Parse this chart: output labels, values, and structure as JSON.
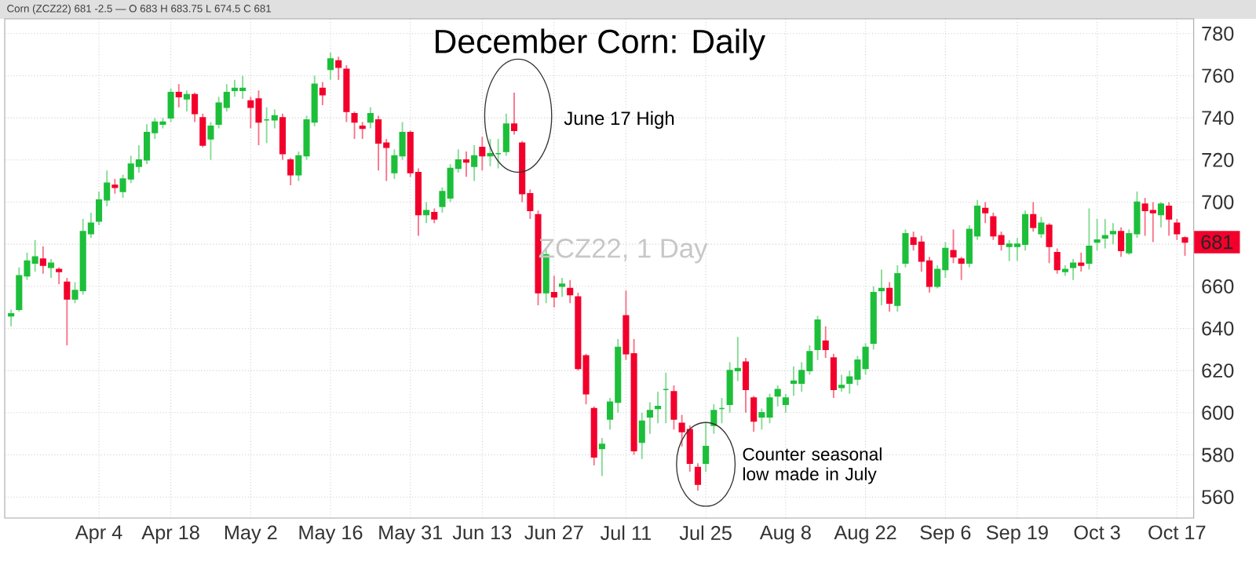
{
  "chart_data": {
    "type": "candlestick",
    "title": "December Corn: Daily",
    "categories": [
      null,
      null,
      null,
      null,
      null,
      null,
      null,
      null,
      null,
      null,
      null,
      "Apr 4",
      null,
      null,
      null,
      null,
      null,
      null,
      null,
      null,
      "Apr 18",
      null,
      null,
      null,
      null,
      null,
      null,
      null,
      null,
      null,
      "May 2",
      null,
      null,
      null,
      null,
      null,
      null,
      null,
      null,
      null,
      "May 16",
      null,
      null,
      null,
      null,
      null,
      null,
      null,
      null,
      null,
      "May 31",
      null,
      null,
      null,
      null,
      null,
      null,
      null,
      null,
      "Jun 13",
      null,
      null,
      null,
      null,
      null,
      null,
      null,
      null,
      "Jun 27",
      null,
      null,
      null,
      null,
      null,
      null,
      null,
      null,
      "Jul 11",
      null,
      null,
      null,
      null,
      null,
      null,
      null,
      null,
      null,
      "Jul 25",
      null,
      null,
      null,
      null,
      null,
      null,
      null,
      null,
      null,
      "Aug 8",
      null,
      null,
      null,
      null,
      null,
      null,
      null,
      null,
      null,
      "Aug 22",
      null,
      null,
      null,
      null,
      null,
      null,
      null,
      null,
      null,
      "Sep 6",
      null,
      null,
      null,
      null,
      null,
      null,
      null,
      null,
      "Sep 19",
      null,
      null,
      null,
      null,
      null,
      null,
      null,
      null,
      null,
      "Oct 3",
      null,
      null,
      null,
      null,
      null,
      null,
      null,
      null,
      null,
      "Oct 17",
      null
    ],
    "ohlc": [
      [
        646,
        649,
        641,
        647
      ],
      [
        649,
        669,
        648,
        665
      ],
      [
        665,
        676,
        663,
        672
      ],
      [
        671,
        682,
        667,
        674
      ],
      [
        673,
        679,
        666,
        670
      ],
      [
        669,
        673,
        664,
        671
      ],
      [
        668,
        669,
        661,
        667
      ],
      [
        662,
        664,
        632,
        654
      ],
      [
        654,
        662,
        652,
        658
      ],
      [
        658,
        692,
        656,
        686
      ],
      [
        685,
        695,
        683,
        690
      ],
      [
        691,
        705,
        689,
        701
      ],
      [
        701,
        715,
        698,
        709
      ],
      [
        708,
        711,
        704,
        707
      ],
      [
        705,
        713,
        702,
        711
      ],
      [
        711,
        722,
        709,
        718
      ],
      [
        717,
        727,
        714,
        720
      ],
      [
        720,
        737,
        718,
        733
      ],
      [
        733,
        740,
        730,
        738
      ],
      [
        737,
        740,
        735,
        738
      ],
      [
        740,
        754,
        738,
        752
      ],
      [
        752,
        756,
        745,
        750
      ],
      [
        749,
        753,
        743,
        751
      ],
      [
        751,
        752,
        738,
        742
      ],
      [
        740,
        742,
        726,
        727
      ],
      [
        730,
        738,
        720,
        736
      ],
      [
        737,
        750,
        735,
        747
      ],
      [
        745,
        756,
        743,
        752
      ],
      [
        753,
        758,
        750,
        754
      ],
      [
        753,
        760,
        749,
        754
      ],
      [
        748,
        750,
        735,
        745
      ],
      [
        749,
        753,
        727,
        738
      ],
      [
        739,
        745,
        728,
        739
      ],
      [
        739,
        744,
        735,
        741
      ],
      [
        740,
        742,
        720,
        723
      ],
      [
        720,
        721,
        708,
        713
      ],
      [
        713,
        724,
        710,
        722
      ],
      [
        722,
        741,
        720,
        739
      ],
      [
        738,
        760,
        736,
        756
      ],
      [
        754,
        757,
        746,
        751
      ],
      [
        763,
        771,
        758,
        768
      ],
      [
        767,
        769,
        758,
        764
      ],
      [
        763,
        765,
        738,
        743
      ],
      [
        742,
        743,
        730,
        738
      ],
      [
        736,
        738,
        730,
        735
      ],
      [
        738,
        745,
        735,
        742
      ],
      [
        739,
        741,
        715,
        728
      ],
      [
        728,
        730,
        710,
        726
      ],
      [
        714,
        725,
        711,
        722
      ],
      [
        722,
        738,
        720,
        733
      ],
      [
        733,
        734,
        712,
        714
      ],
      [
        714,
        716,
        684,
        694
      ],
      [
        694,
        700,
        690,
        696
      ],
      [
        695,
        697,
        690,
        692
      ],
      [
        698,
        707,
        695,
        705
      ],
      [
        702,
        718,
        700,
        716
      ],
      [
        716,
        725,
        714,
        720
      ],
      [
        720,
        724,
        712,
        719
      ],
      [
        717,
        727,
        710,
        722
      ],
      [
        726,
        731,
        715,
        722
      ],
      [
        722,
        730,
        717,
        723
      ],
      [
        723,
        730,
        716,
        723
      ],
      [
        724,
        742,
        722,
        737
      ],
      [
        737,
        752,
        732,
        734
      ],
      [
        728,
        729,
        700,
        704
      ],
      [
        704,
        706,
        692,
        696
      ],
      [
        694,
        696,
        651,
        657
      ],
      [
        657,
        678,
        652,
        675
      ],
      [
        657,
        665,
        650,
        655
      ],
      [
        660,
        664,
        655,
        661
      ],
      [
        659,
        663,
        652,
        656
      ],
      [
        655,
        657,
        620,
        621
      ],
      [
        627,
        628,
        604,
        609
      ],
      [
        602,
        603,
        575,
        579
      ],
      [
        583,
        588,
        570,
        585
      ],
      [
        597,
        607,
        592,
        605
      ],
      [
        605,
        635,
        600,
        631
      ],
      [
        646,
        658,
        625,
        628
      ],
      [
        628,
        635,
        580,
        582
      ],
      [
        586,
        600,
        578,
        596
      ],
      [
        598,
        605,
        590,
        601
      ],
      [
        602,
        610,
        595,
        603
      ],
      [
        611,
        619,
        595,
        611
      ],
      [
        610,
        613,
        592,
        597
      ],
      [
        595,
        599,
        584,
        591
      ],
      [
        592,
        594,
        572,
        576
      ],
      [
        574,
        576,
        563,
        566
      ],
      [
        576,
        595,
        572,
        584
      ],
      [
        594,
        604,
        590,
        601
      ],
      [
        602,
        607,
        595,
        602
      ],
      [
        604,
        624,
        600,
        620
      ],
      [
        620,
        636,
        615,
        621
      ],
      [
        624,
        626,
        600,
        611
      ],
      [
        607,
        608,
        591,
        596
      ],
      [
        598,
        602,
        592,
        600
      ],
      [
        598,
        609,
        595,
        607
      ],
      [
        608,
        613,
        603,
        611
      ],
      [
        604,
        609,
        600,
        607
      ],
      [
        614,
        622,
        608,
        615
      ],
      [
        614,
        624,
        610,
        620
      ],
      [
        620,
        632,
        618,
        629
      ],
      [
        630,
        646,
        625,
        644
      ],
      [
        634,
        641,
        626,
        630
      ],
      [
        626,
        628,
        607,
        611
      ],
      [
        612,
        618,
        610,
        613
      ],
      [
        614,
        620,
        609,
        617
      ],
      [
        616,
        627,
        613,
        625
      ],
      [
        621,
        633,
        618,
        631
      ],
      [
        633,
        660,
        630,
        657
      ],
      [
        658,
        668,
        651,
        659
      ],
      [
        659,
        662,
        648,
        652
      ],
      [
        651,
        670,
        648,
        666
      ],
      [
        671,
        687,
        669,
        685
      ],
      [
        683,
        686,
        677,
        680
      ],
      [
        681,
        684,
        667,
        672
      ],
      [
        672,
        674,
        657,
        660
      ],
      [
        660,
        670,
        659,
        668
      ],
      [
        668,
        681,
        664,
        678
      ],
      [
        677,
        687,
        671,
        674
      ],
      [
        673,
        674,
        663,
        671
      ],
      [
        671,
        689,
        669,
        687
      ],
      [
        684,
        701,
        682,
        698
      ],
      [
        697,
        700,
        690,
        695
      ],
      [
        693,
        695,
        682,
        684
      ],
      [
        684,
        686,
        677,
        680
      ],
      [
        679,
        682,
        672,
        680
      ],
      [
        679,
        683,
        672,
        680
      ],
      [
        680,
        696,
        677,
        694
      ],
      [
        694,
        700,
        686,
        688
      ],
      [
        685,
        693,
        683,
        690
      ],
      [
        689,
        690,
        671,
        679
      ],
      [
        676,
        678,
        666,
        668
      ],
      [
        667,
        670,
        665,
        668
      ],
      [
        669,
        673,
        663,
        671
      ],
      [
        671,
        676,
        667,
        670
      ],
      [
        671,
        697,
        668,
        679
      ],
      [
        681,
        692,
        677,
        682
      ],
      [
        683,
        692,
        678,
        684
      ],
      [
        685,
        690,
        680,
        686
      ],
      [
        686,
        688,
        674,
        677
      ],
      [
        676,
        687,
        675,
        685
      ],
      [
        685,
        705,
        683,
        700
      ],
      [
        699,
        702,
        684,
        696
      ],
      [
        696,
        700,
        681,
        695
      ],
      [
        694,
        700,
        688,
        699
      ],
      [
        698,
        700,
        684,
        692
      ],
      [
        690,
        692,
        682,
        685
      ],
      [
        683,
        683.75,
        674.5,
        681
      ]
    ],
    "ylim": [
      550,
      787
    ],
    "yticks": [
      560,
      580,
      600,
      620,
      640,
      660,
      {
        "value": 680,
        "label": null
      },
      700,
      720,
      740,
      760,
      780
    ],
    "grid": true,
    "annotations": [
      "Corn (ZCZ22) 681 -2.5 — O 683 H 683.75 L 674.5 C 681",
      {
        "text": "681",
        "y": 681
      },
      "ZCZ22, 1 Day",
      "June 17 High",
      "Counter seasonal low made in July"
    ]
  }
}
